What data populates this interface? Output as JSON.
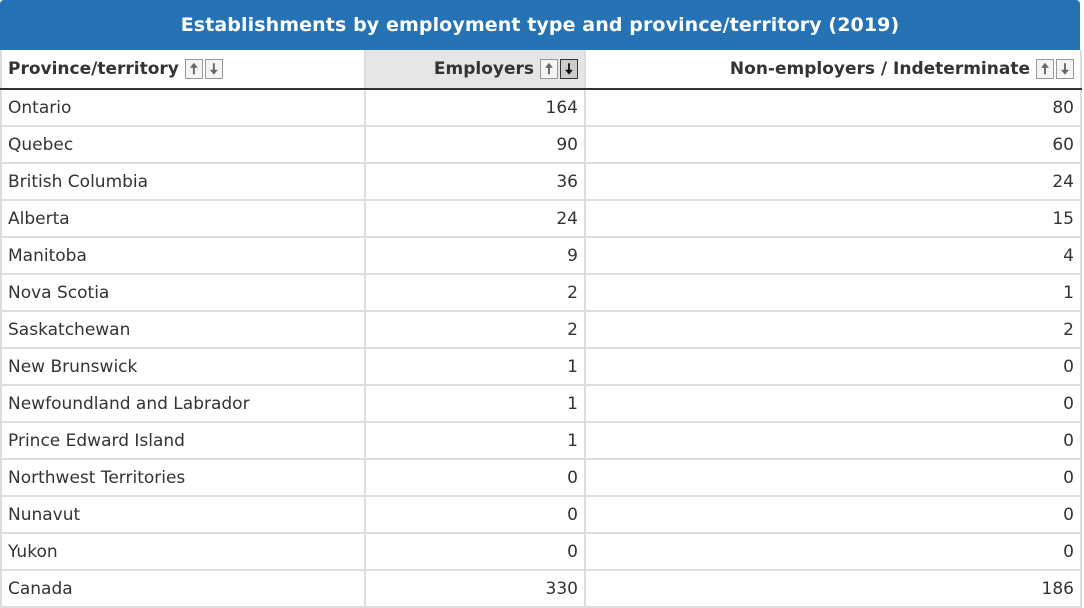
{
  "table": {
    "title": "Establishments by employment type and province/territory (2019)",
    "headers": {
      "province": "Province/territory",
      "employers": "Employers",
      "nonemployers": "Non-employers / Indeterminate"
    },
    "sort_icons": {
      "up": "▲-arrow-up-icon",
      "down": "▼-arrow-down-icon"
    },
    "sorted_column": "employers",
    "sorted_direction": "descending",
    "rows": [
      {
        "province": "Ontario",
        "employers": "164",
        "nonemployers": "80"
      },
      {
        "province": "Quebec",
        "employers": "90",
        "nonemployers": "60"
      },
      {
        "province": "British Columbia",
        "employers": "36",
        "nonemployers": "24"
      },
      {
        "province": "Alberta",
        "employers": "24",
        "nonemployers": "15"
      },
      {
        "province": "Manitoba",
        "employers": "9",
        "nonemployers": "4"
      },
      {
        "province": "Nova Scotia",
        "employers": "2",
        "nonemployers": "1"
      },
      {
        "province": "Saskatchewan",
        "employers": "2",
        "nonemployers": "2"
      },
      {
        "province": "New Brunswick",
        "employers": "1",
        "nonemployers": "0"
      },
      {
        "province": "Newfoundland and Labrador",
        "employers": "1",
        "nonemployers": "0"
      },
      {
        "province": "Prince Edward Island",
        "employers": "1",
        "nonemployers": "0"
      },
      {
        "province": "Northwest Territories",
        "employers": "0",
        "nonemployers": "0"
      },
      {
        "province": "Nunavut",
        "employers": "0",
        "nonemployers": "0"
      },
      {
        "province": "Yukon",
        "employers": "0",
        "nonemployers": "0"
      },
      {
        "province": "Canada",
        "employers": "330",
        "nonemployers": "186"
      }
    ]
  }
}
